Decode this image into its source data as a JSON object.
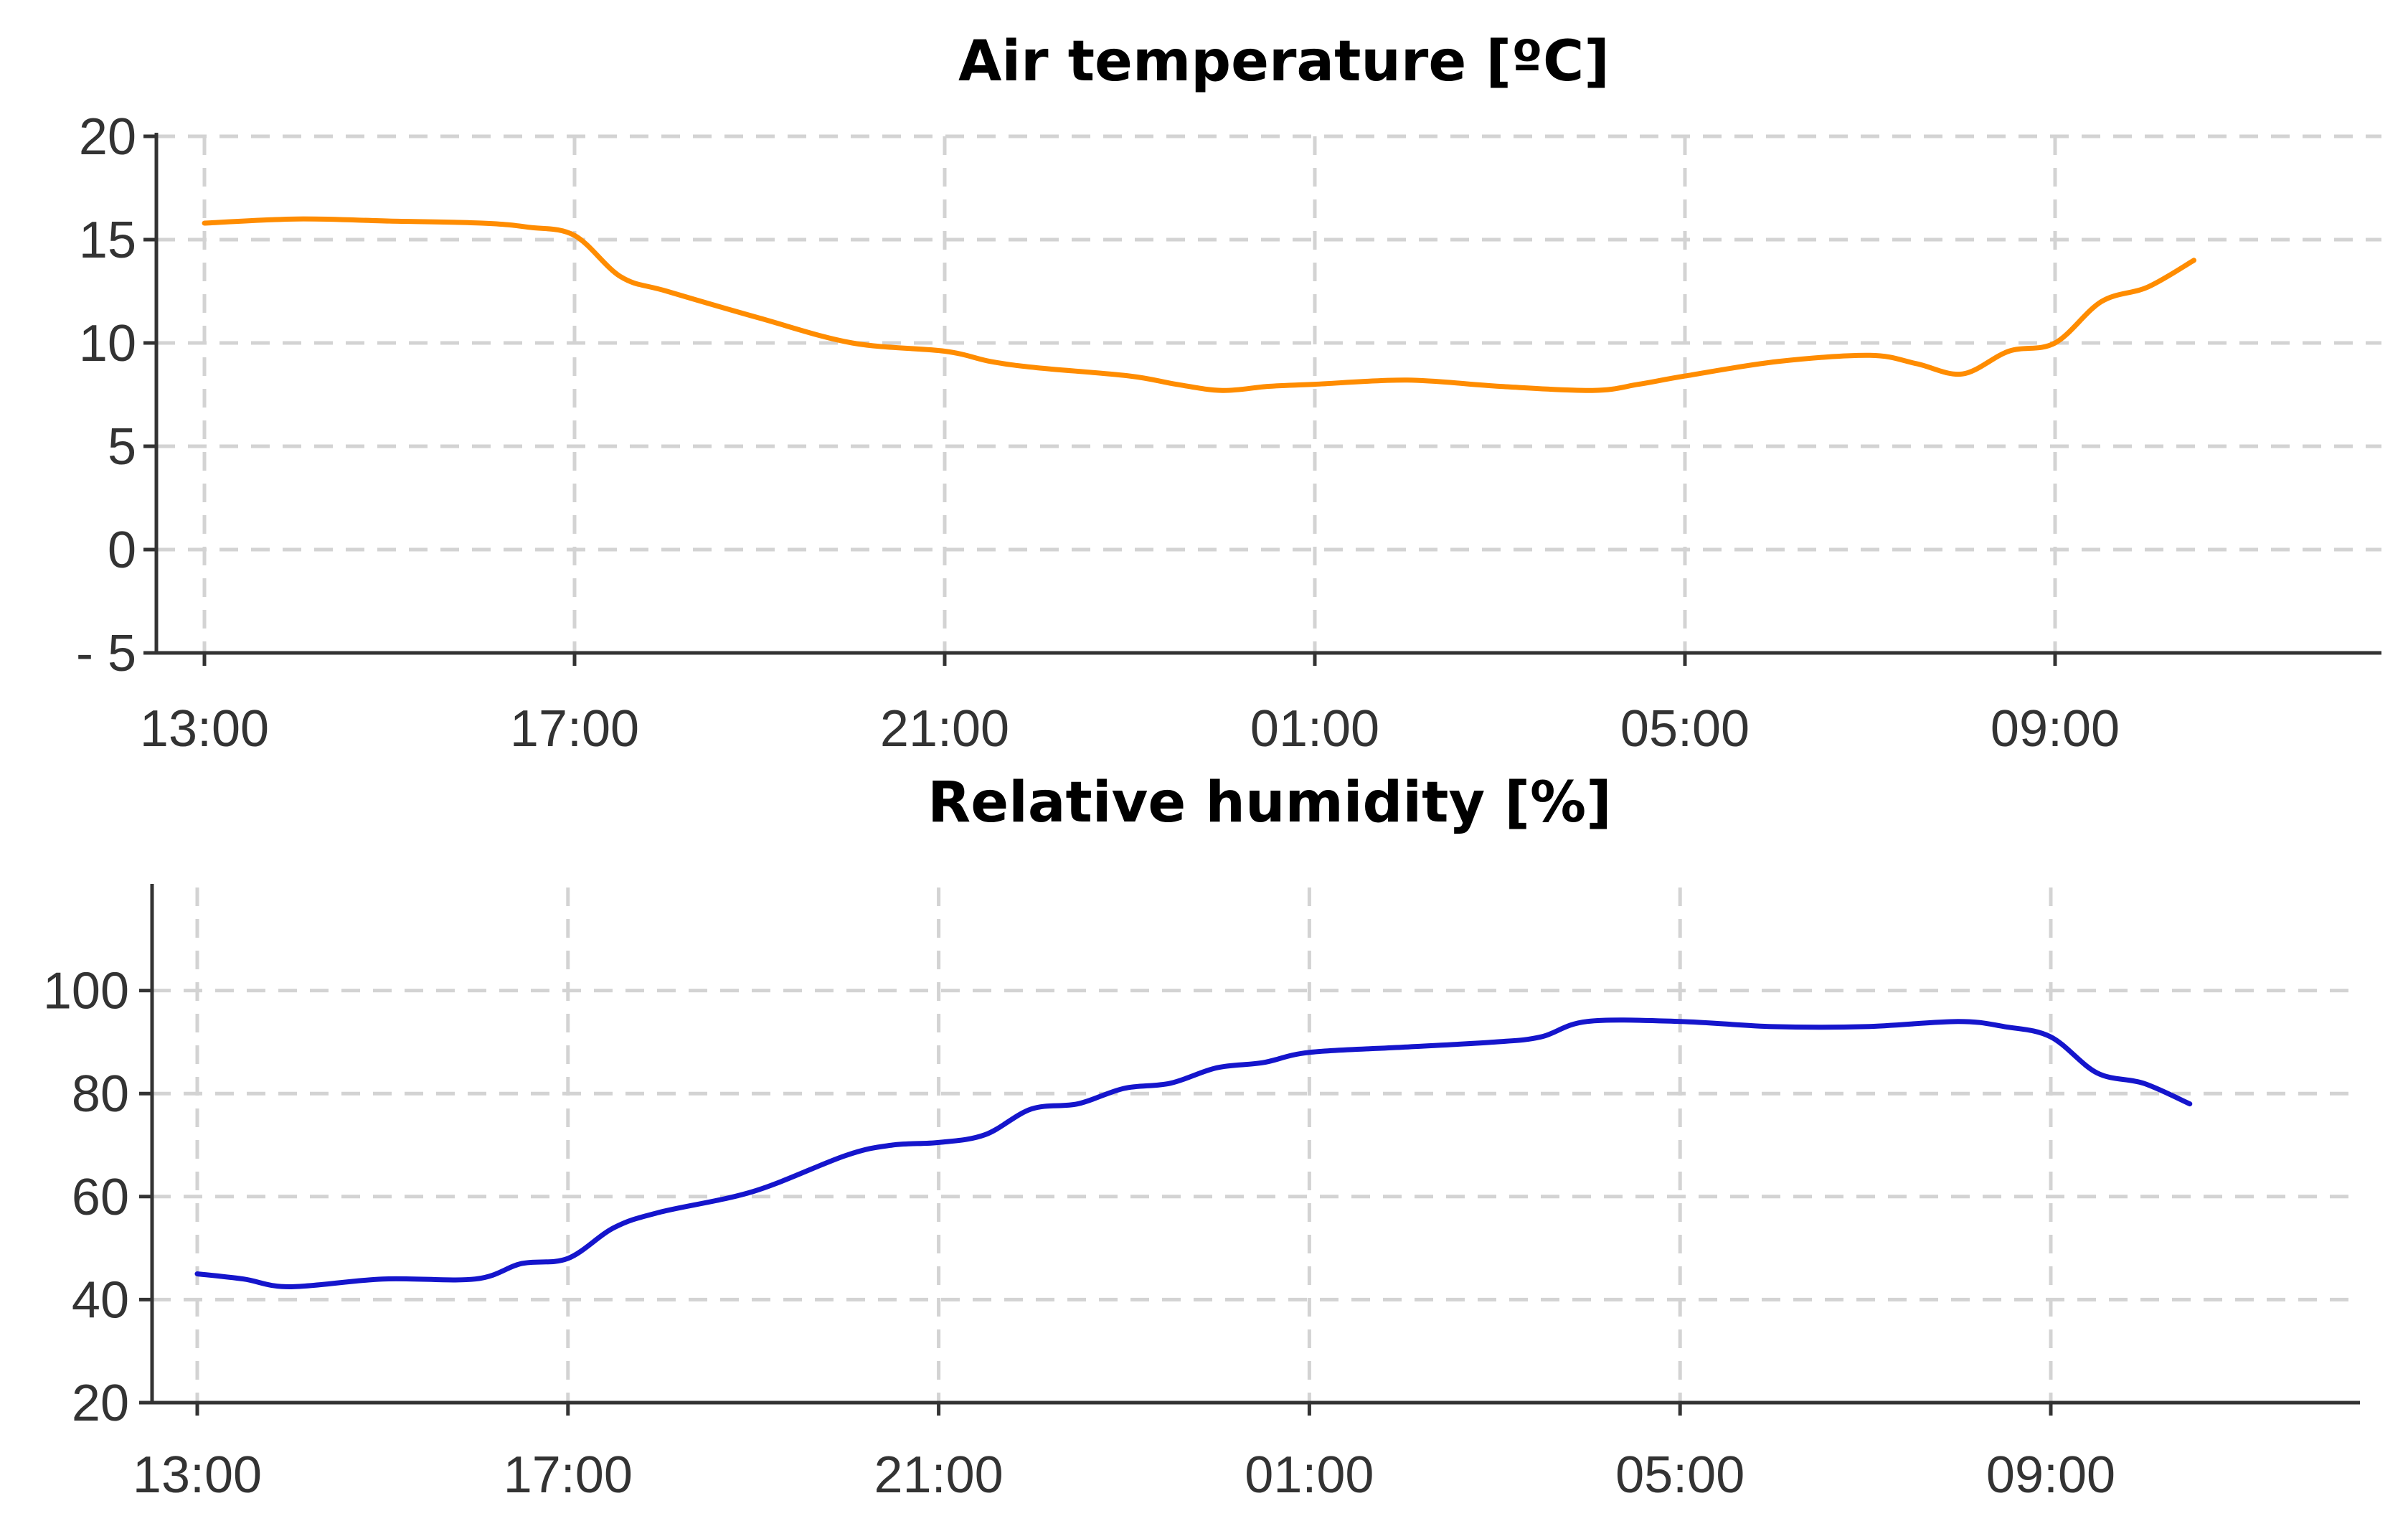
{
  "chart_data": [
    {
      "type": "line",
      "title": "Air temperature [ºC]",
      "xlabel": "",
      "ylabel": "",
      "x_ticks": [
        "13:00",
        "17:00",
        "21:00",
        "01:00",
        "05:00",
        "09:00"
      ],
      "y_ticks": [
        "- 5",
        "0",
        "5",
        "10",
        "15",
        "20"
      ],
      "ylim": [
        -5,
        20
      ],
      "grid": true,
      "color": "#ff8c00",
      "series": [
        {
          "x": [
            "13:00",
            "14:00",
            "15:00",
            "16:00",
            "16:30",
            "17:00",
            "17:30",
            "18:00",
            "19:00",
            "20:00",
            "21:00",
            "21:30",
            "22:00",
            "23:00",
            "23:30",
            "00:00",
            "00:30",
            "01:00",
            "02:00",
            "03:00",
            "04:00",
            "04:30",
            "05:00",
            "06:00",
            "07:00",
            "07:30",
            "08:00",
            "08:30",
            "09:00",
            "09:30",
            "10:00",
            "10:30"
          ],
          "values": [
            15.8,
            16.0,
            15.9,
            15.8,
            15.6,
            15.2,
            13.2,
            12.5,
            11.2,
            10.0,
            9.6,
            9.1,
            8.8,
            8.4,
            8.0,
            7.7,
            7.9,
            8.0,
            8.2,
            7.9,
            7.7,
            8.0,
            8.4,
            9.1,
            9.4,
            9.0,
            8.5,
            9.6,
            10.0,
            12.0,
            12.7,
            14.0
          ]
        }
      ]
    },
    {
      "type": "line",
      "title": "Relative humidity [%]",
      "xlabel": "",
      "ylabel": "",
      "x_ticks": [
        "13:00",
        "17:00",
        "21:00",
        "01:00",
        "05:00",
        "09:00"
      ],
      "y_ticks": [
        "20",
        "40",
        "60",
        "80",
        "100"
      ],
      "ylim": [
        20,
        120
      ],
      "grid": true,
      "color": "#1515cc",
      "series": [
        {
          "x": [
            "13:00",
            "13:30",
            "14:00",
            "15:00",
            "16:00",
            "16:30",
            "17:00",
            "17:30",
            "18:00",
            "19:00",
            "20:00",
            "20:30",
            "21:00",
            "21:30",
            "22:00",
            "22:30",
            "23:00",
            "23:30",
            "00:00",
            "00:30",
            "01:00",
            "02:00",
            "03:00",
            "03:30",
            "04:00",
            "05:00",
            "06:00",
            "07:00",
            "08:00",
            "08:30",
            "09:00",
            "09:30",
            "10:00",
            "10:30"
          ],
          "values": [
            45,
            44,
            42.5,
            44,
            44,
            47,
            48,
            54,
            57,
            61,
            68,
            70,
            70.5,
            72,
            77,
            78,
            81,
            82,
            85,
            86,
            88,
            89,
            90,
            91,
            94,
            94,
            93,
            93,
            94,
            93,
            91,
            84,
            82,
            78
          ]
        }
      ]
    }
  ]
}
